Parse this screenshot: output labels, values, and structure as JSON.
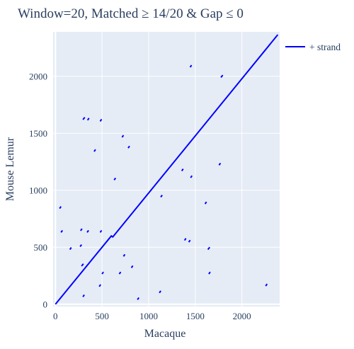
{
  "chart_data": {
    "type": "line",
    "title": "Window=20, Matched ≥ 14/20 & Gap ≤ 0",
    "xlabel": "Macaque",
    "ylabel": "Mouse Lemur",
    "xlim": [
      -25,
      2405
    ],
    "ylim": [
      -20,
      2390
    ],
    "xticks": [
      0,
      500,
      1000,
      1500,
      2000
    ],
    "yticks": [
      0,
      500,
      1000,
      1500,
      2000
    ],
    "grid": true,
    "legend_position": "top-right",
    "colors": {
      "plot_bg": "#e5ecf6",
      "grid": "#ffffff",
      "series": "#0000ff"
    },
    "series": [
      {
        "name": "+ strand",
        "diagonal": [
          [
            0,
            0
          ],
          [
            600,
            600
          ],
          [
            615,
            590
          ],
          [
            2385,
            2365
          ]
        ],
        "segments": [
          [
            [
              45,
              840
            ],
            [
              60,
              858
            ]
          ],
          [
            [
              60,
              630
            ],
            [
              75,
              648
            ]
          ],
          [
            [
              155,
              480
            ],
            [
              170,
              498
            ]
          ],
          [
            [
              265,
              505
            ],
            [
              280,
              523
            ]
          ],
          [
            [
              270,
              645
            ],
            [
              285,
              663
            ]
          ],
          [
            [
              280,
              335
            ],
            [
              300,
              355
            ]
          ],
          [
            [
              295,
              65
            ],
            [
              310,
              83
            ]
          ],
          [
            [
              295,
              1620
            ],
            [
              315,
              1640
            ]
          ],
          [
            [
              340,
              630
            ],
            [
              355,
              648
            ]
          ],
          [
            [
              345,
              1615
            ],
            [
              360,
              1633
            ]
          ],
          [
            [
              415,
              1340
            ],
            [
              430,
              1358
            ]
          ],
          [
            [
              470,
              155
            ],
            [
              485,
              173
            ]
          ],
          [
            [
              480,
              1605
            ],
            [
              495,
              1623
            ]
          ],
          [
            [
              480,
              630
            ],
            [
              495,
              648
            ]
          ],
          [
            [
              500,
              265
            ],
            [
              515,
              283
            ]
          ],
          [
            [
              630,
              1090
            ],
            [
              645,
              1108
            ]
          ],
          [
            [
              685,
              265
            ],
            [
              700,
              283
            ]
          ],
          [
            [
              715,
              1465
            ],
            [
              730,
              1483
            ]
          ],
          [
            [
              730,
              420
            ],
            [
              745,
              438
            ]
          ],
          [
            [
              780,
              1370
            ],
            [
              795,
              1388
            ]
          ],
          [
            [
              815,
              320
            ],
            [
              830,
              338
            ]
          ],
          [
            [
              880,
              40
            ],
            [
              895,
              58
            ]
          ],
          [
            [
              1115,
              100
            ],
            [
              1130,
              118
            ]
          ],
          [
            [
              1130,
              940
            ],
            [
              1145,
              958
            ]
          ],
          [
            [
              1355,
              1170
            ],
            [
              1370,
              1188
            ]
          ],
          [
            [
              1385,
              560
            ],
            [
              1400,
              578
            ]
          ],
          [
            [
              1430,
              545
            ],
            [
              1445,
              563
            ]
          ],
          [
            [
              1445,
              2080
            ],
            [
              1460,
              2098
            ]
          ],
          [
            [
              1450,
              1110
            ],
            [
              1465,
              1128
            ]
          ],
          [
            [
              1605,
              880
            ],
            [
              1620,
              898
            ]
          ],
          [
            [
              1635,
              480
            ],
            [
              1655,
              500
            ]
          ],
          [
            [
              1645,
              265
            ],
            [
              1660,
              283
            ]
          ],
          [
            [
              1755,
              1220
            ],
            [
              1770,
              1238
            ]
          ],
          [
            [
              1775,
              1990
            ],
            [
              1795,
              2010
            ]
          ],
          [
            [
              2255,
              160
            ],
            [
              2270,
              178
            ]
          ]
        ]
      }
    ]
  }
}
